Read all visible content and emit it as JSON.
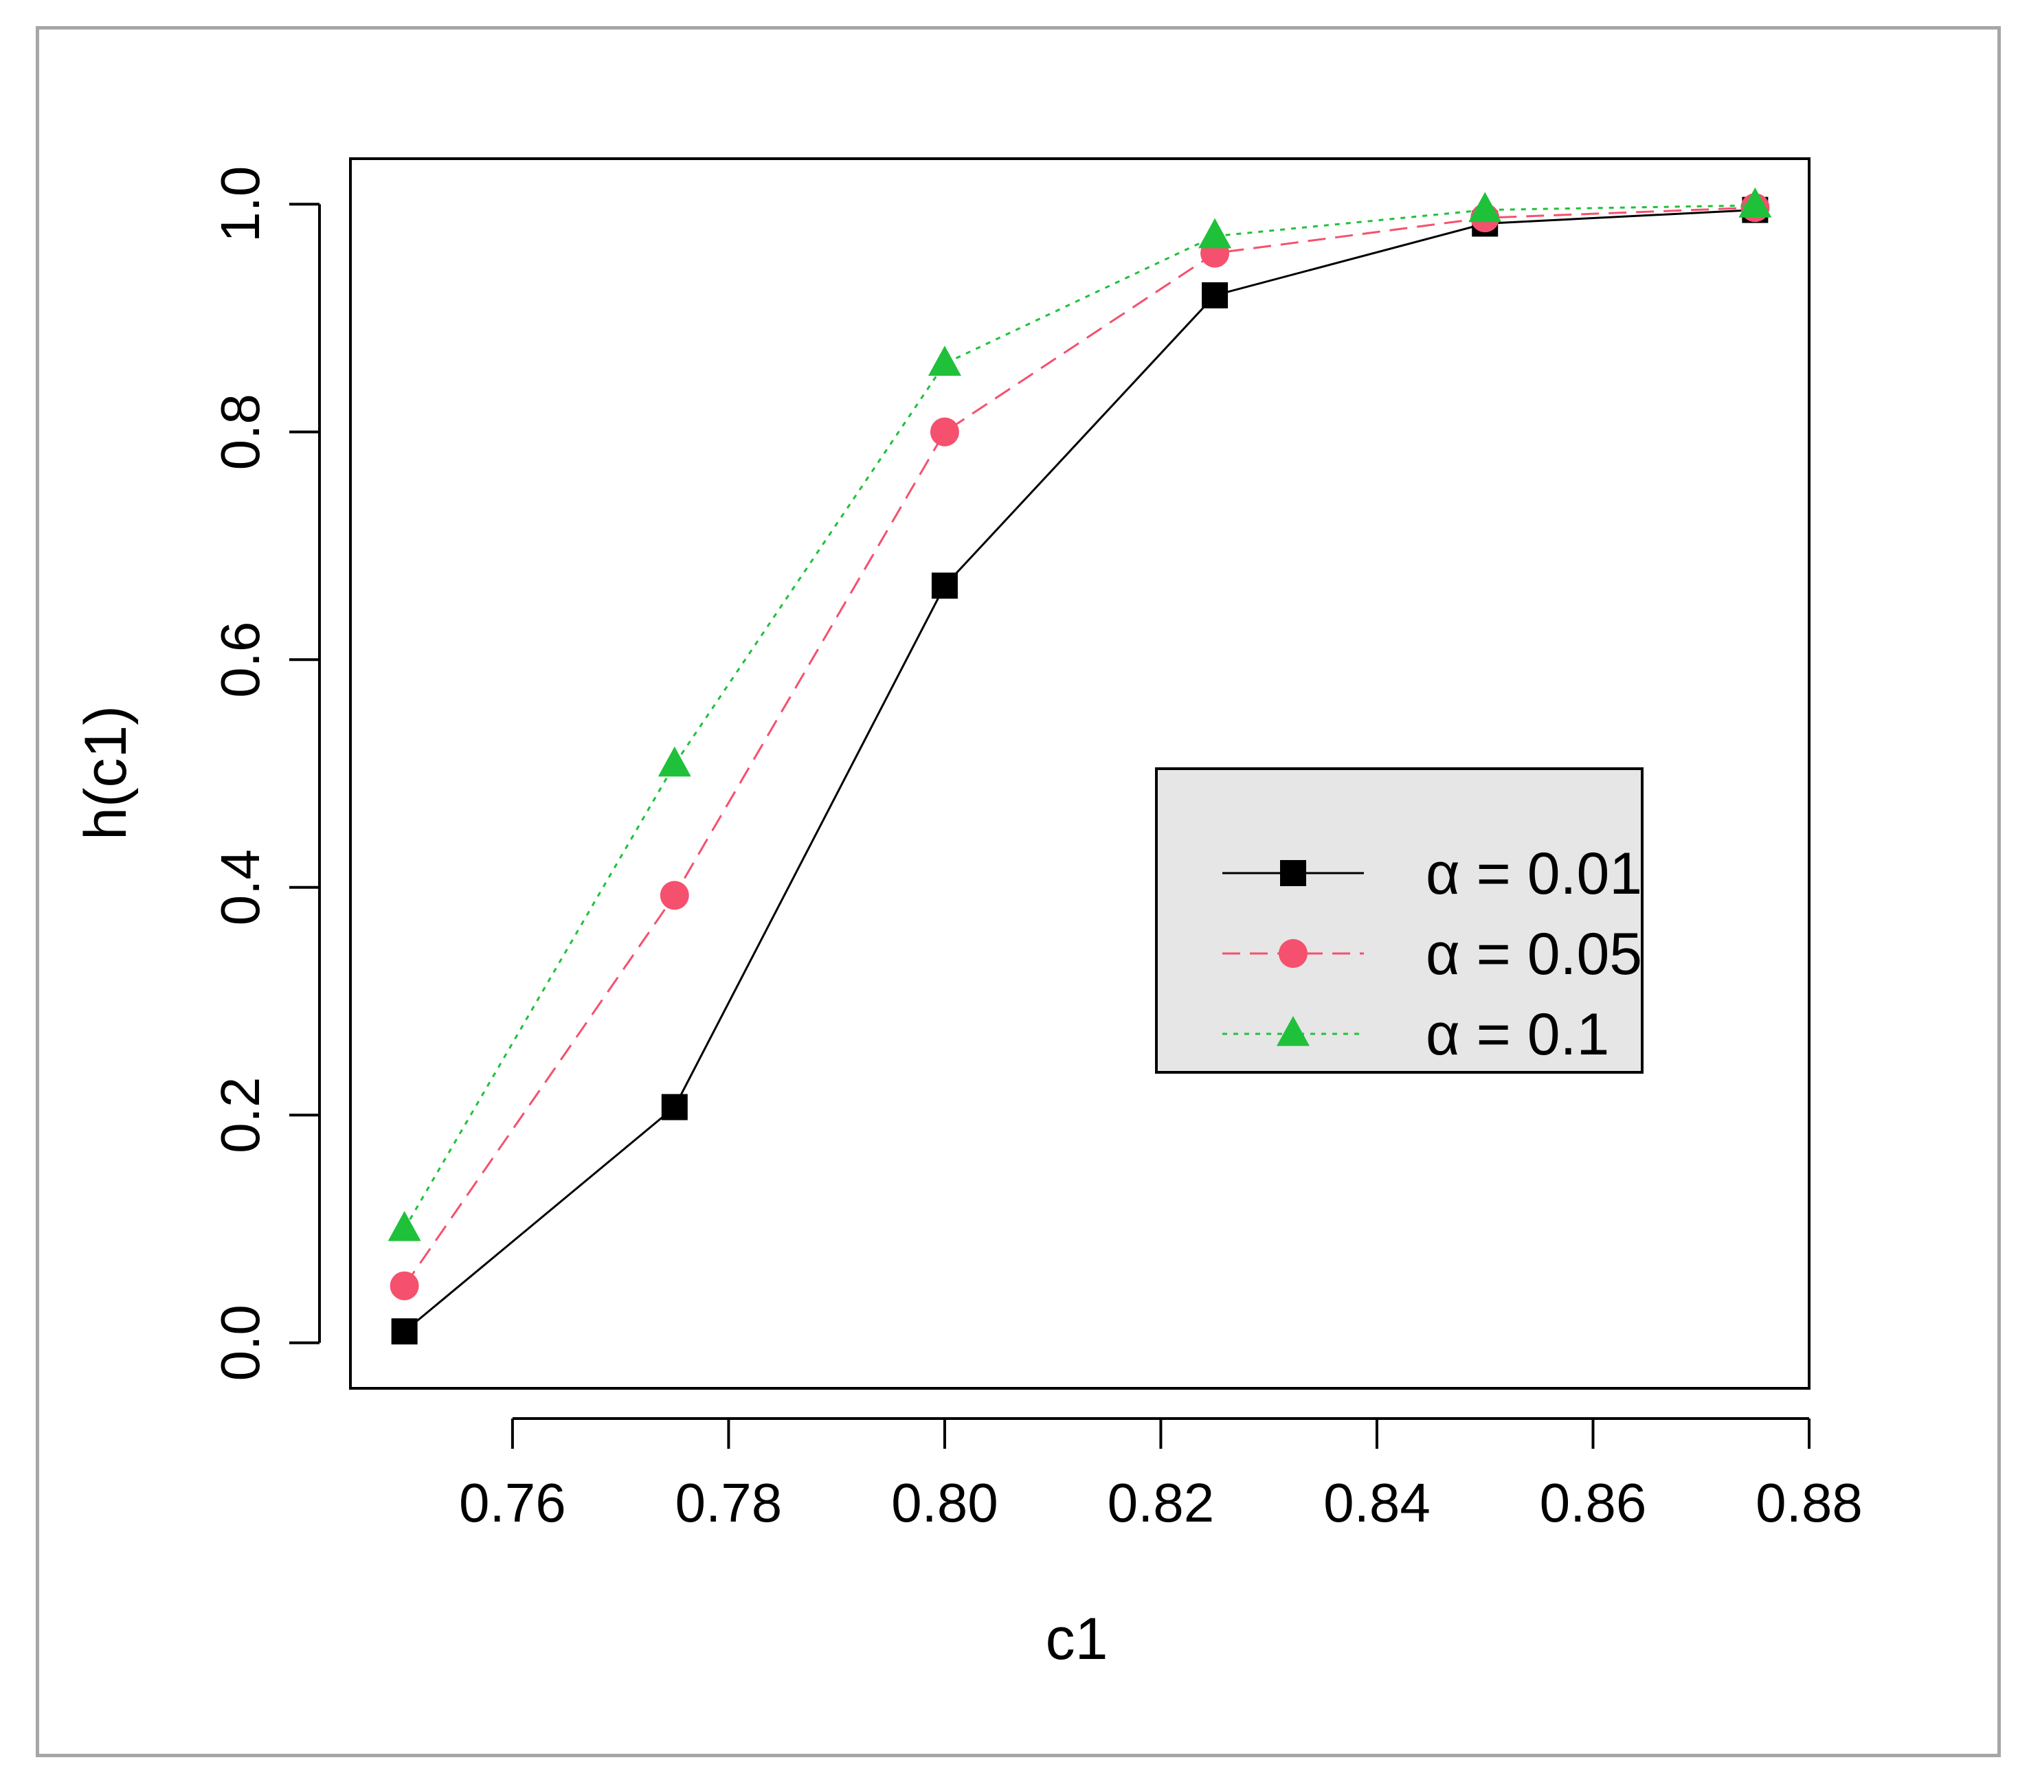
{
  "chart_data": {
    "type": "line",
    "title": "",
    "xlabel": "c1",
    "ylabel": "h(c1)",
    "xlim": [
      0.745,
      0.88
    ],
    "ylim": [
      -0.04,
      1.04
    ],
    "x_ticks": [
      0.76,
      0.78,
      0.8,
      0.82,
      0.84,
      0.86,
      0.88
    ],
    "x_tick_labels": [
      "0.76",
      "0.78",
      "0.80",
      "0.82",
      "0.84",
      "0.86",
      "0.88"
    ],
    "y_ticks": [
      0.0,
      0.2,
      0.4,
      0.6,
      0.8,
      1.0
    ],
    "y_tick_labels": [
      "0.0",
      "0.2",
      "0.4",
      "0.6",
      "0.8",
      "1.0"
    ],
    "grid": false,
    "legend_position": "center-right",
    "x": [
      0.75,
      0.775,
      0.8,
      0.825,
      0.85,
      0.875
    ],
    "series": [
      {
        "name": "α = 0.01",
        "values": [
          0.01,
          0.207,
          0.665,
          0.92,
          0.983,
          0.995
        ],
        "color": "#000000",
        "line_style": "solid",
        "marker": "square"
      },
      {
        "name": "α = 0.05",
        "values": [
          0.05,
          0.393,
          0.8,
          0.957,
          0.988,
          0.997
        ],
        "color": "#f5506e",
        "line_style": "dashed",
        "marker": "circle"
      },
      {
        "name": "α = 0.1",
        "values": [
          0.1,
          0.508,
          0.86,
          0.972,
          0.995,
          0.999
        ],
        "color": "#1fc13a",
        "line_style": "dotted",
        "marker": "triangle"
      }
    ]
  }
}
